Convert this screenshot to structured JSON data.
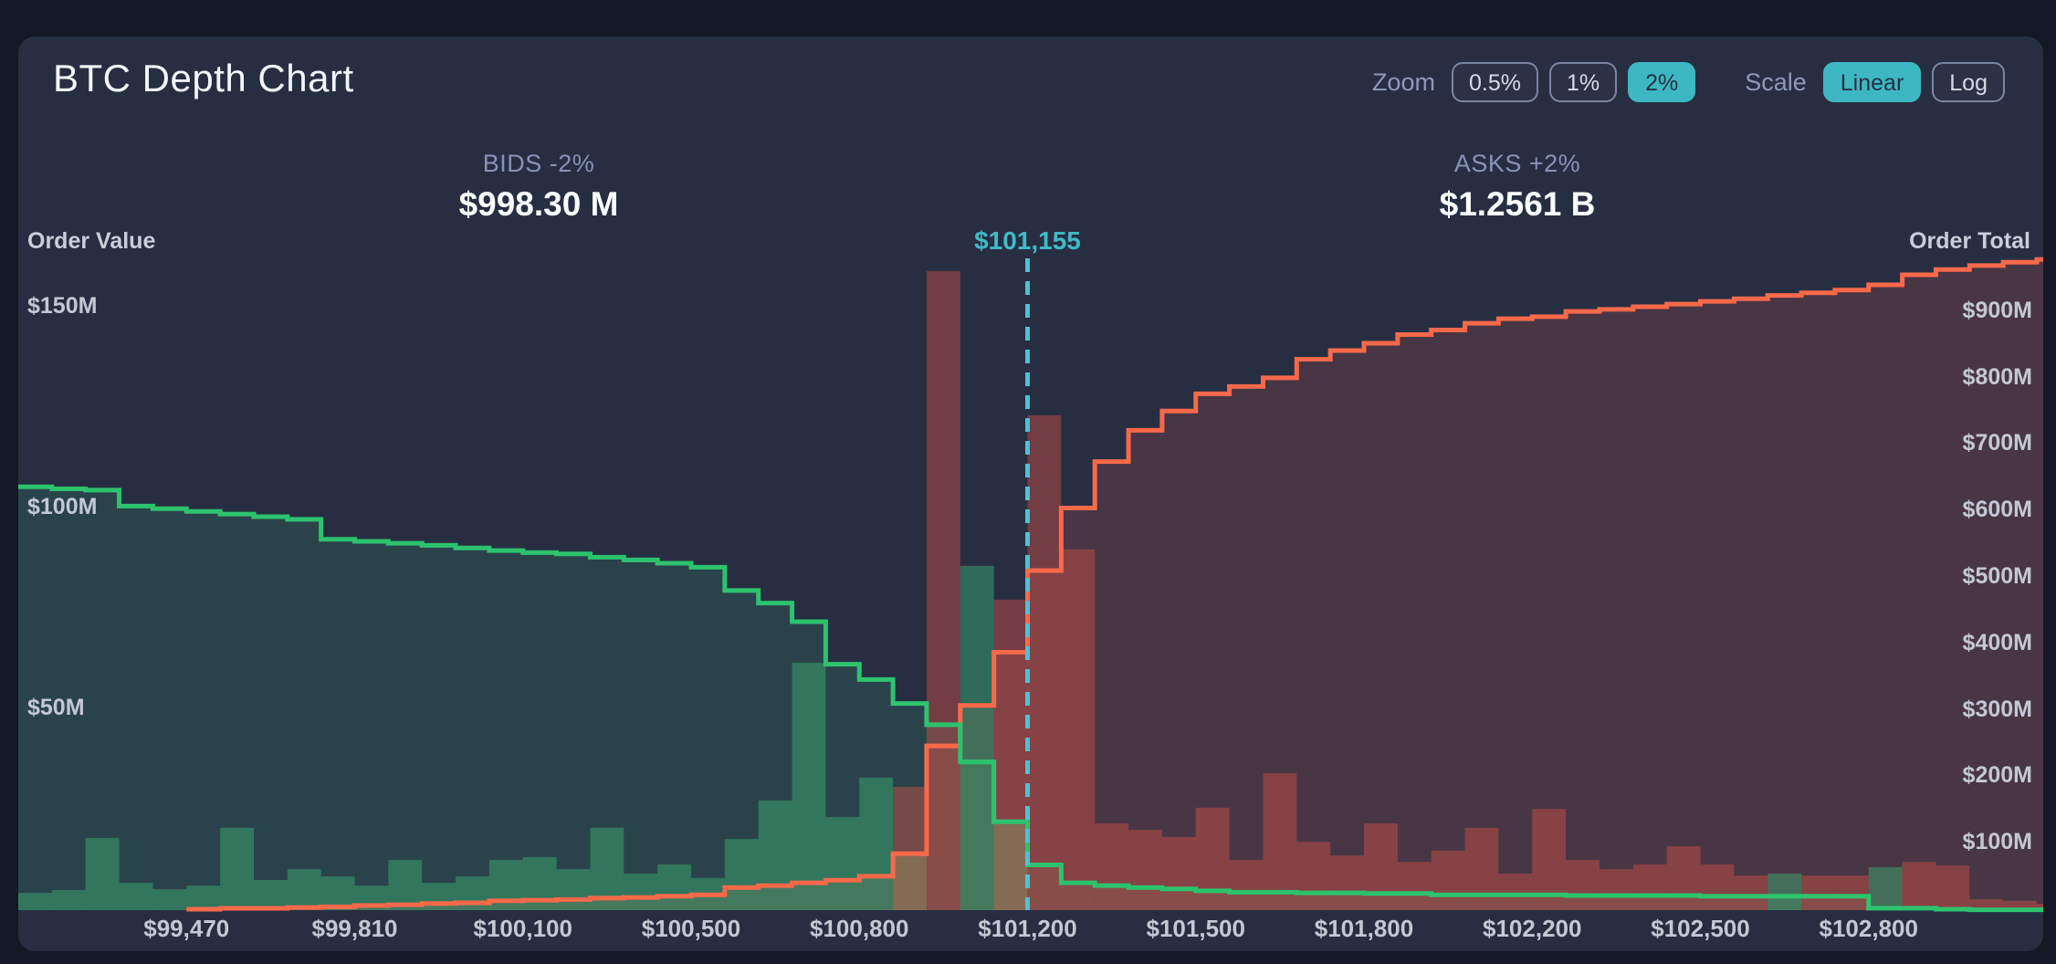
{
  "header": {
    "title": "BTC Depth Chart",
    "zoom_label": "Zoom",
    "zoom_options": [
      "0.5%",
      "1%",
      "2%"
    ],
    "zoom_selected": "2%",
    "scale_label": "Scale",
    "scale_options": [
      "Linear",
      "Log"
    ],
    "scale_selected": "Linear"
  },
  "summary": {
    "bids_label": "BIDS -2%",
    "bids_value": "$998.30 M",
    "asks_label": "ASKS +2%",
    "asks_value": "$1.2561 B"
  },
  "mid_price_label": "$101,155",
  "colors": {
    "accent_teal": "#3db8c2",
    "bid_green": "#2dc36e",
    "ask_orange": "#f8694a",
    "card_bg": "#272e42"
  },
  "chart_data": {
    "type": "depth",
    "title": "BTC Depth Chart",
    "mid_price": 101155,
    "zoom_window": "2%",
    "scale": "Linear",
    "left_axis": {
      "title": "Order Value",
      "ticks": [
        {
          "value": 50,
          "label": "$50M"
        },
        {
          "value": 100,
          "label": "$100M"
        },
        {
          "value": 150,
          "label": "$150M"
        }
      ],
      "units": "USD millions"
    },
    "right_axis": {
      "title": "Order Total",
      "ticks": [
        {
          "value": 100,
          "label": "$100M"
        },
        {
          "value": 200,
          "label": "$200M"
        },
        {
          "value": 300,
          "label": "$300M"
        },
        {
          "value": 400,
          "label": "$400M"
        },
        {
          "value": 500,
          "label": "$500M"
        },
        {
          "value": 600,
          "label": "$600M"
        },
        {
          "value": 700,
          "label": "$700M"
        },
        {
          "value": 800,
          "label": "$800M"
        },
        {
          "value": 900,
          "label": "$900M"
        }
      ],
      "units": "USD millions"
    },
    "x_ticks": [
      {
        "index": 5,
        "label": "$99,470"
      },
      {
        "index": 10,
        "label": "$99,810"
      },
      {
        "index": 15,
        "label": "$100,100"
      },
      {
        "index": 20,
        "label": "$100,500"
      },
      {
        "index": 25,
        "label": "$100,800"
      },
      {
        "index": 30,
        "label": "$101,200"
      },
      {
        "index": 35,
        "label": "$101,500"
      },
      {
        "index": 40,
        "label": "$101,800"
      },
      {
        "index": 45,
        "label": "$102,200"
      },
      {
        "index": 50,
        "label": "$102,500"
      },
      {
        "index": 55,
        "label": "$102,800"
      }
    ],
    "bucket_prices": [
      99140,
      99200,
      99270,
      99340,
      99400,
      99470,
      99540,
      99600,
      99670,
      99730,
      99800,
      99870,
      99930,
      100000,
      100070,
      100130,
      100200,
      100270,
      100330,
      100400,
      100460,
      100530,
      100600,
      100660,
      100730,
      100790,
      100860,
      100930,
      100990,
      101060,
      101130,
      101190,
      101260,
      101320,
      101390,
      101460,
      101520,
      101590,
      101650,
      101720,
      101790,
      101850,
      101920,
      101980,
      102050,
      102120,
      102180,
      102250,
      102310,
      102380,
      102450,
      102510,
      102580,
      102640,
      102710,
      102790,
      102850,
      102920,
      102980,
      103050,
      103120
    ],
    "bid_orders_M": [
      4.3,
      5,
      18,
      6.8,
      5.2,
      6.1,
      20.5,
      7.5,
      10.2,
      8.4,
      6.1,
      12.5,
      6.8,
      8.4,
      12.5,
      13.2,
      10.2,
      20.5,
      9.1,
      11.4,
      8,
      17.7,
      27.3,
      61.6,
      23.2,
      33,
      14.3,
      0,
      85.7,
      22,
      0,
      0,
      0,
      0,
      0,
      0,
      0,
      0,
      0,
      0,
      0,
      0,
      0,
      0,
      0,
      0,
      0,
      0,
      0,
      0,
      0,
      0,
      9.1,
      0,
      0,
      10.7,
      0,
      0,
      0,
      0,
      0
    ],
    "ask_orders_M": [
      0,
      0,
      0,
      0,
      0,
      0,
      0,
      0,
      0,
      0,
      0,
      0,
      0,
      0,
      0,
      0,
      0,
      0,
      0,
      0,
      0,
      0,
      0,
      0,
      0,
      0,
      30.7,
      159.1,
      0,
      77.3,
      123.2,
      89.8,
      21.6,
      20,
      18.2,
      25.5,
      12.5,
      34.1,
      17,
      13.6,
      21.6,
      12,
      14.8,
      20.5,
      9.1,
      25.2,
      12.5,
      10.2,
      11.4,
      15.9,
      11.4,
      8.6,
      0,
      8.6,
      8.6,
      0,
      12,
      11.1,
      2.7,
      2.3,
      1.6
    ],
    "bids_cumulative_M": [
      637,
      634,
      632,
      608,
      604,
      600,
      596,
      592,
      588,
      558,
      555,
      552,
      549,
      545,
      541,
      538,
      536,
      531,
      527,
      522,
      516,
      481,
      462,
      434,
      370,
      347,
      311,
      279,
      223,
      133,
      68,
      41,
      37,
      34,
      32,
      29,
      27,
      27,
      26,
      26,
      25,
      25,
      23,
      23,
      23,
      23,
      22,
      22,
      22,
      22,
      21,
      21,
      21,
      21,
      21,
      3,
      3,
      1.4,
      0.5,
      0.5,
      0.5
    ],
    "asks_cumulative_M": [
      null,
      null,
      null,
      null,
      null,
      1.4,
      2.7,
      2.7,
      4,
      5,
      7,
      8,
      10,
      11,
      14,
      15,
      16,
      18,
      19,
      21,
      23,
      34,
      37,
      41,
      45,
      51,
      85,
      247,
      308,
      388,
      511,
      605,
      675,
      722,
      751,
      777,
      788,
      801,
      829,
      842,
      853,
      866,
      873,
      883,
      890,
      893,
      901,
      904,
      908,
      912,
      916,
      920,
      925,
      929,
      933,
      941,
      956,
      964,
      970,
      975,
      979
    ],
    "bids_total_label": "$998.30 M",
    "asks_total_label": "$1.2561 B",
    "legend_position": "none",
    "grid": false
  }
}
